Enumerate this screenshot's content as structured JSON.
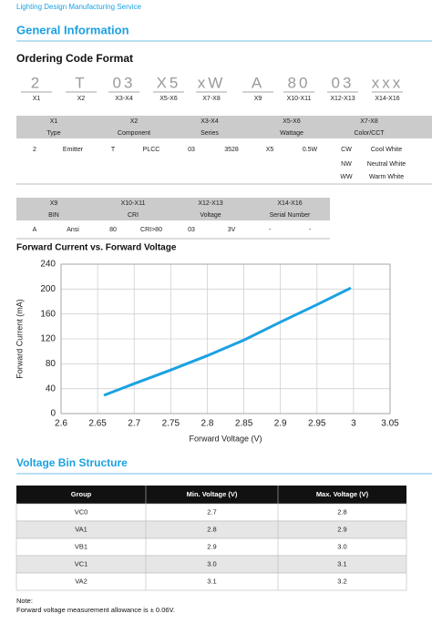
{
  "header": {
    "brand": "Lighting Design Manufacturing Service"
  },
  "general": {
    "title": "General Information",
    "subtitle": "Ordering Code Format"
  },
  "ordering_code": [
    {
      "code": "2",
      "position": "X1"
    },
    {
      "code": "T",
      "position": "X2"
    },
    {
      "code": "03",
      "position": "X3-X4"
    },
    {
      "code": "X5",
      "position": "X5-X6"
    },
    {
      "code": "xW",
      "position": "X7-X8"
    },
    {
      "code": "A",
      "position": "X9"
    },
    {
      "code": "80",
      "position": "X10-X11"
    },
    {
      "code": "03",
      "position": "X12-X13"
    },
    {
      "code": "xxx",
      "position": "X14-X16"
    }
  ],
  "table1": {
    "positions": [
      "X1",
      "X2",
      "X3-X4",
      "X5-X6",
      "X7-X8"
    ],
    "headers": [
      "Type",
      "Component",
      "Series",
      "Wattage",
      "Color/CCT"
    ],
    "rows": [
      [
        "2",
        "Emitter",
        "T",
        "PLCC",
        "03",
        "3528",
        "X5",
        "0.5W",
        "CW",
        "Cool White"
      ]
    ],
    "extra_rows": [
      [
        "NW",
        "Neutral White"
      ],
      [
        "WW",
        "Warm White"
      ]
    ]
  },
  "table2": {
    "positions": [
      "X9",
      "X10-X11",
      "X12-X13",
      "X14-X16"
    ],
    "headers": [
      "BIN",
      "CRI",
      "Voltage",
      "Serial Number"
    ],
    "rows": [
      [
        "A",
        "Ansi",
        "80",
        "CRI>80",
        "03",
        "3V",
        "-",
        "-"
      ]
    ]
  },
  "chart_data": {
    "type": "line",
    "title": "Forward Current vs. Forward Voltage",
    "x_label": "Forward Voltage (V)",
    "y_label": "Forward Current (mA)",
    "x": [
      2.66,
      2.7,
      2.75,
      2.8,
      2.85,
      2.9,
      2.95,
      2.995
    ],
    "values": [
      30,
      48,
      70,
      93,
      118,
      147,
      175,
      201
    ],
    "color": "#1ba1e2",
    "xlim": [
      2.6,
      3.05
    ],
    "xticks": [
      2.6,
      2.65,
      2.7,
      2.75,
      2.8,
      2.85,
      2.9,
      2.95,
      3,
      3.05
    ],
    "ylim": [
      0,
      240
    ],
    "yticks": [
      0,
      40,
      80,
      120,
      160,
      200,
      240
    ],
    "grid": true
  },
  "voltage_bin": {
    "title": "Voltage Bin Structure",
    "headers": [
      "Group",
      "Min. Voltage (V)",
      "Max. Voltage (V)"
    ],
    "rows": [
      [
        "VC0",
        "2.7",
        "2.8"
      ],
      [
        "VA1",
        "2.8",
        "2.9"
      ],
      [
        "VB1",
        "2.9",
        "3.0"
      ],
      [
        "VC1",
        "3.0",
        "3.1"
      ],
      [
        "VA2",
        "3.1",
        "3.2"
      ]
    ]
  },
  "note": {
    "label": "Note:",
    "text": "Forward voltage measurement allowance is ± 0.06V."
  }
}
